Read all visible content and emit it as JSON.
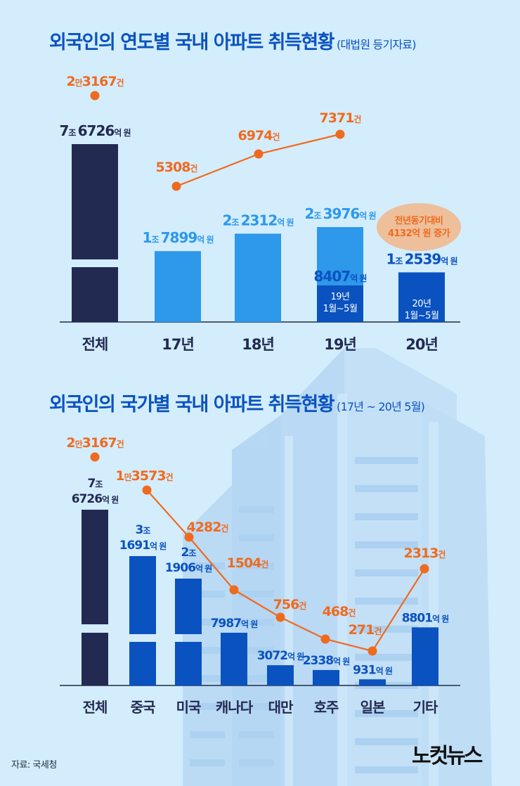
{
  "colors": {
    "background": "#d3edfd",
    "navy": "#232a52",
    "light_blue": "#2e98ea",
    "dark_blue": "#0a52c0",
    "orange": "#f06a1e",
    "ellipse_fill": "#edbf9a",
    "axis": "#1f2d4a"
  },
  "titles": {
    "top_main": "외국인의 연도별 국내 아파트 취득현황",
    "top_sub": "(대법원 등기자료)",
    "bottom_main": "외국인의 국가별 국내 아파트 취득현황",
    "bottom_sub": "(17년 ~ 20년 5월)"
  },
  "footer": {
    "source": "자료: 국세청",
    "logo": "노컷뉴스"
  },
  "chart_data": [
    {
      "type": "bar",
      "title": "외국인의 연도별 국내 아파트 취득현황 (대법원 등기자료)",
      "categories": [
        "전체",
        "17년",
        "18년",
        "19년",
        "20년"
      ],
      "series": [
        {
          "name": "취득금액 (억 원)",
          "values": [
            76726,
            17899,
            22312,
            23976,
            12539
          ],
          "labels": [
            {
              "big1": "7",
              "unit1": "조",
              "big2": "6726",
              "unit2": "억 원"
            },
            {
              "big1": "1",
              "unit1": "조",
              "big2": "7899",
              "unit2": "억 원"
            },
            {
              "big1": "2",
              "unit1": "조",
              "big2": "2312",
              "unit2": "억 원"
            },
            {
              "big1": "2",
              "unit1": "조",
              "big2": "3976",
              "unit2": "억 원"
            },
            {
              "big1": "1",
              "unit1": "조",
              "big2": "2539",
              "unit2": "억 원"
            }
          ],
          "broken_axis": [
            true,
            false,
            false,
            false,
            false
          ]
        },
        {
          "name": "19년 1월~5월 (억 원)",
          "category": "19년",
          "value": 8407,
          "label": {
            "big": "8407",
            "unit": "억 원"
          },
          "inner_label": [
            "19년",
            "1월~5월"
          ]
        },
        {
          "name": "20년 1월~5월",
          "category": "20년",
          "inner_label": [
            "20년",
            "1월~5월"
          ]
        },
        {
          "name": "취득건수 (건)",
          "type": "line",
          "categories": [
            "전체",
            "17년",
            "18년",
            "19년"
          ],
          "values": [
            23167,
            5308,
            6974,
            7371
          ],
          "labels": [
            {
              "a": "2",
              "au": "만",
              "b": "3167",
              "bu": "건"
            },
            {
              "a": "",
              "au": "",
              "b": "5308",
              "bu": "건"
            },
            {
              "a": "",
              "au": "",
              "b": "6974",
              "bu": "건"
            },
            {
              "a": "",
              "au": "",
              "b": "7371",
              "bu": "건"
            }
          ],
          "connected_from_index": 1
        }
      ],
      "annotation": [
        "전년동기대비",
        "4132억 원 증가"
      ]
    },
    {
      "type": "bar",
      "title": "외국인의 국가별 국내 아파트 취득현황 (17년 ~ 20년 5월)",
      "categories": [
        "전체",
        "중국",
        "미국",
        "캐나다",
        "대만",
        "호주",
        "일본",
        "기타"
      ],
      "series": [
        {
          "name": "취득금액 (억 원)",
          "values": [
            76726,
            31691,
            21906,
            7987,
            3072,
            2338,
            931,
            8801
          ],
          "labels": [
            {
              "l1": "7조",
              "l2": "6726억 원"
            },
            {
              "l1": "3조",
              "l2": "1691억 원"
            },
            {
              "l1": "2조",
              "l2": "1906억 원"
            },
            {
              "l1": "",
              "l2": "7987억 원"
            },
            {
              "l1": "",
              "l2": "3072억 원"
            },
            {
              "l1": "",
              "l2": "2338억 원"
            },
            {
              "l1": "",
              "l2": "931억 원"
            },
            {
              "l1": "",
              "l2": "8801억 원"
            }
          ],
          "broken_axis": [
            true,
            true,
            true,
            false,
            false,
            false,
            false,
            false
          ]
        },
        {
          "name": "취득건수 (건)",
          "type": "line",
          "values": [
            23167,
            13573,
            4282,
            1504,
            756,
            468,
            271,
            2313
          ],
          "labels": [
            {
              "a": "2",
              "au": "만",
              "b": "3167",
              "bu": "건"
            },
            {
              "a": "1",
              "au": "만",
              "b": "3573",
              "bu": "건"
            },
            {
              "a": "",
              "au": "",
              "b": "4282",
              "bu": "건"
            },
            {
              "a": "",
              "au": "",
              "b": "1504",
              "bu": "건"
            },
            {
              "a": "",
              "au": "",
              "b": "756",
              "bu": "건"
            },
            {
              "a": "",
              "au": "",
              "b": "468",
              "bu": "건"
            },
            {
              "a": "",
              "au": "",
              "b": "271",
              "bu": "건"
            },
            {
              "a": "",
              "au": "",
              "b": "2313",
              "bu": "건"
            }
          ],
          "connected_from_index": 1
        }
      ]
    }
  ]
}
